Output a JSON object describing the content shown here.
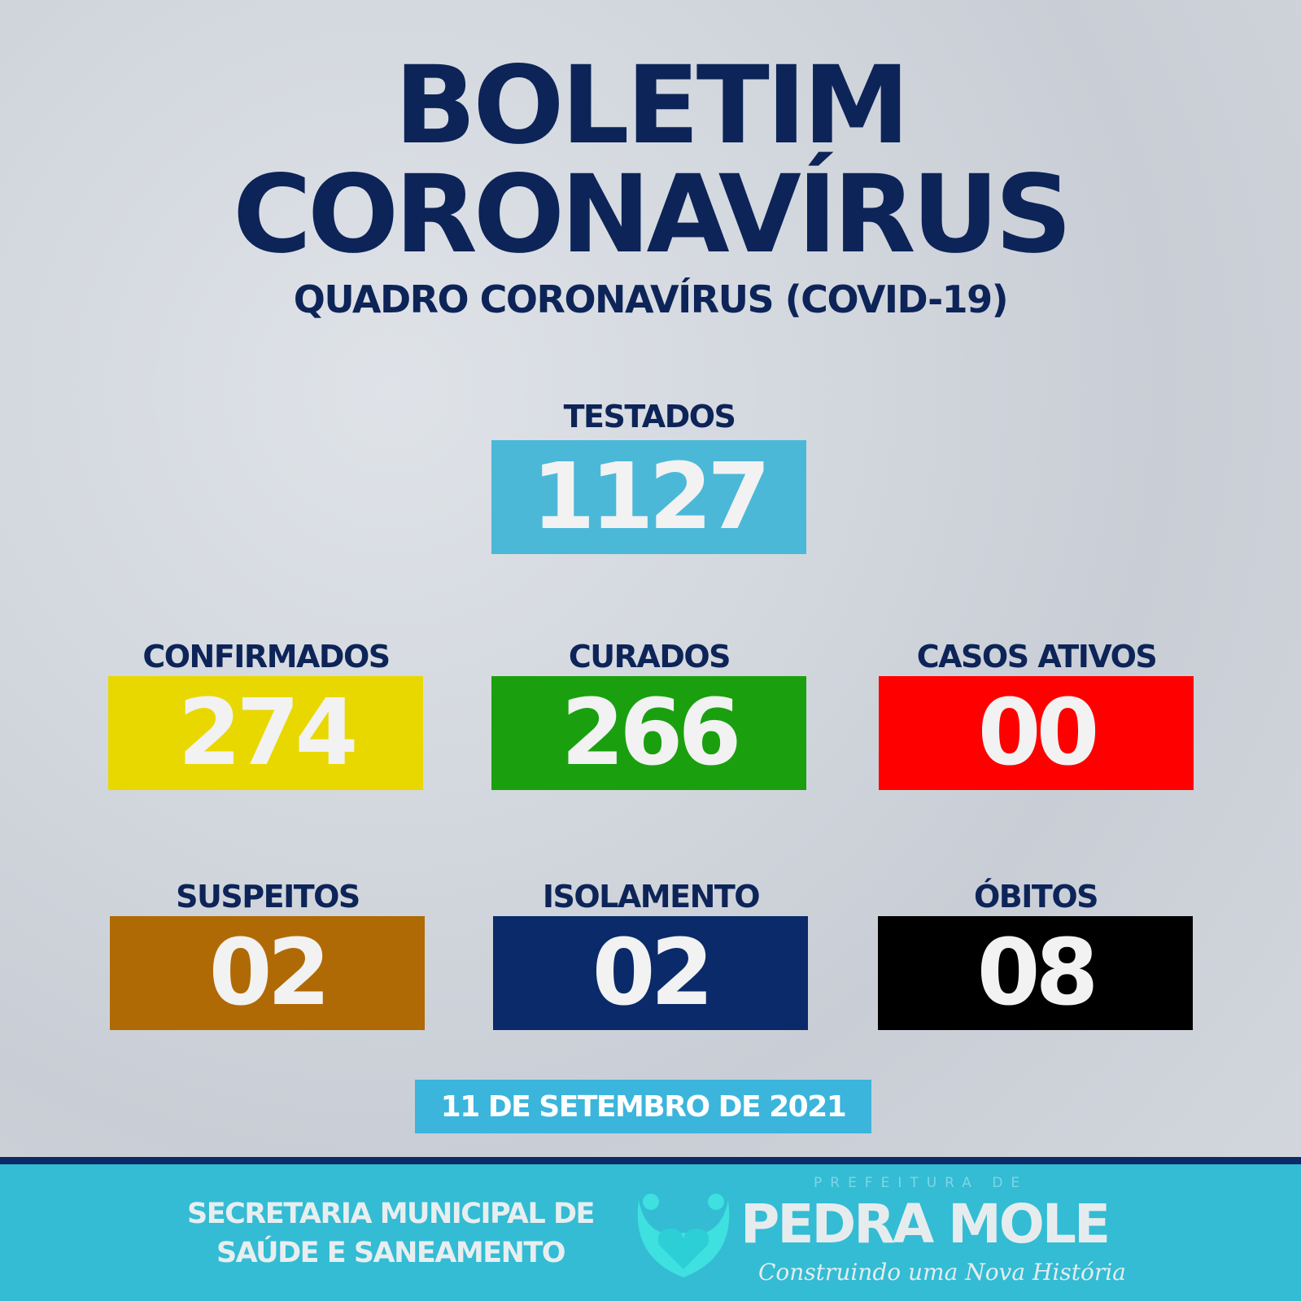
{
  "header": {
    "title_line1": "BOLETIM",
    "title_line2": "CORONAVÍRUS",
    "subtitle": "QUADRO CORONAVÍRUS (COVID-19)"
  },
  "stats": [
    {
      "label": "TESTADOS",
      "value": "1127",
      "color": "#4bb8d8"
    },
    {
      "label": "CONFIRMADOS",
      "value": "274",
      "color": "#e8d800"
    },
    {
      "label": "CURADOS",
      "value": "266",
      "color": "#1aa00f"
    },
    {
      "label": "CASOS ATIVOS",
      "value": "00",
      "color": "#ff0000"
    },
    {
      "label": "SUSPEITOS",
      "value": "02",
      "color": "#b06a05"
    },
    {
      "label": "ISOLAMENTO",
      "value": "02",
      "color": "#0a2a6a"
    },
    {
      "label": "ÓBITOS",
      "value": "08",
      "color": "#000000"
    }
  ],
  "date": "11 DE SETEMBRO DE 2021",
  "footer": {
    "secretaria_line1": "SECRETARIA MUNICIPAL DE",
    "secretaria_line2": "SAÚDE E SANEAMENTO",
    "logo_prefix": "PREFEITURA DE",
    "logo_name": "PEDRA MOLE",
    "logo_slogan": "Construindo uma Nova História",
    "logo_icon": "heart-people-icon"
  }
}
